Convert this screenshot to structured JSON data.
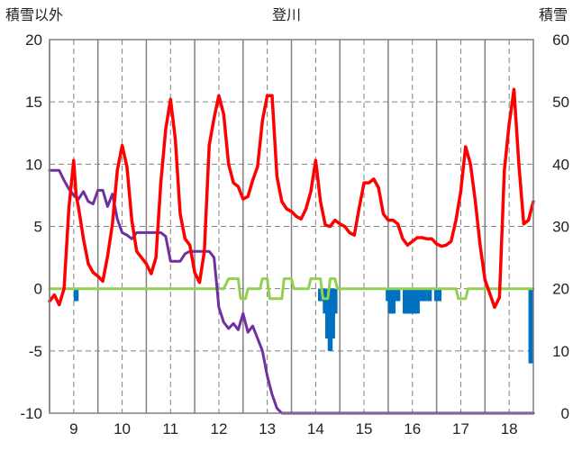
{
  "chart_data": {
    "type": "line",
    "title": "登川",
    "left_axis_label": "積雪以外",
    "right_axis_label": "積雪",
    "left_ylim": [
      -10,
      20
    ],
    "left_yticks": [
      "20",
      "15",
      "10",
      "5",
      "0",
      "-5",
      "-10"
    ],
    "right_ylim": [
      0,
      60
    ],
    "right_yticks": [
      "60",
      "50",
      "40",
      "30",
      "20",
      "10",
      "0"
    ],
    "x_range": [
      8.5,
      18.5
    ],
    "x_ticks": [
      "9",
      "10",
      "11",
      "12",
      "13",
      "14",
      "15",
      "16",
      "17",
      "18"
    ],
    "grid": true,
    "colors": {
      "temperature": "#ff0000",
      "snow_depth": "#7030a0",
      "precipitation_line": "#92d050",
      "bars": "#0070c0",
      "axis": "#808080",
      "grid": "#808080"
    },
    "series": [
      {
        "key": "temperature",
        "axis": "left",
        "x": [
          8.5,
          8.6,
          8.7,
          8.8,
          8.9,
          9.0,
          9.05,
          9.1,
          9.2,
          9.3,
          9.4,
          9.5,
          9.6,
          9.7,
          9.8,
          9.9,
          10.0,
          10.1,
          10.2,
          10.3,
          10.4,
          10.5,
          10.6,
          10.7,
          10.8,
          10.9,
          11.0,
          11.1,
          11.2,
          11.3,
          11.4,
          11.5,
          11.6,
          11.7,
          11.8,
          11.9,
          12.0,
          12.1,
          12.2,
          12.3,
          12.4,
          12.5,
          12.6,
          12.7,
          12.8,
          12.9,
          13.0,
          13.1,
          13.2,
          13.3,
          13.4,
          13.5,
          13.6,
          13.7,
          13.8,
          13.9,
          14.0,
          14.1,
          14.2,
          14.3,
          14.4,
          14.5,
          14.6,
          14.7,
          14.8,
          14.9,
          15.0,
          15.1,
          15.2,
          15.3,
          15.4,
          15.5,
          15.6,
          15.7,
          15.8,
          15.9,
          16.0,
          16.1,
          16.2,
          16.3,
          16.4,
          16.5,
          16.6,
          16.7,
          16.8,
          16.9,
          17.0,
          17.1,
          17.2,
          17.3,
          17.4,
          17.5,
          17.6,
          17.7,
          17.8,
          17.9,
          18.0,
          18.1,
          18.2,
          18.3,
          18.4,
          18.5
        ],
        "y": [
          -1,
          -0.5,
          -1.3,
          0,
          6.5,
          10.3,
          7.5,
          6.5,
          4,
          2,
          1.3,
          1,
          0.6,
          2.6,
          5.2,
          9.5,
          11.5,
          9.8,
          5.5,
          3,
          2.5,
          2,
          1.2,
          2.5,
          8.5,
          12.8,
          15.2,
          12,
          6,
          4,
          3.5,
          1.3,
          0.5,
          3,
          11.5,
          13.7,
          15.5,
          14,
          10,
          8.5,
          8.2,
          7.2,
          7.4,
          8.7,
          9.8,
          13.5,
          15.5,
          15.5,
          9,
          7,
          6.4,
          6.2,
          5.8,
          5.6,
          6.4,
          7.8,
          10.3,
          7,
          5.1,
          5.0,
          5.5,
          5.2,
          5.0,
          4.5,
          4.3,
          6.5,
          8.5,
          8.5,
          8.8,
          8.1,
          6,
          5.5,
          5.5,
          5.2,
          4,
          3.5,
          3.8,
          4.1,
          4.1,
          4.0,
          4.0,
          3.6,
          3.4,
          3.5,
          3.8,
          5.5,
          7.8,
          11.4,
          10,
          7,
          3.5,
          0.7,
          -0.4,
          -1.5,
          -0.7,
          9.5,
          13.2,
          16,
          10,
          5.2,
          5.5,
          7
        ]
      },
      {
        "key": "snow_depth",
        "axis": "left",
        "x": [
          8.5,
          8.7,
          8.8,
          8.9,
          9.0,
          9.1,
          9.2,
          9.3,
          9.4,
          9.5,
          9.6,
          9.7,
          9.8,
          9.9,
          10.0,
          10.1,
          10.2,
          10.3,
          10.5,
          10.7,
          10.8,
          10.9,
          11.0,
          11.1,
          11.2,
          11.3,
          11.4,
          11.5,
          11.6,
          11.7,
          11.8,
          11.9,
          11.95,
          12.0,
          12.1,
          12.2,
          12.3,
          12.4,
          12.5,
          12.6,
          12.7,
          12.8,
          12.9,
          13.0,
          13.1,
          13.2,
          13.3,
          13.4,
          13.5,
          14.0,
          15.0,
          16.0,
          17.0,
          18.0,
          18.5
        ],
        "y": [
          9.5,
          9.5,
          8.7,
          8,
          7.5,
          7.2,
          7.8,
          7,
          6.8,
          7.9,
          7.9,
          6.6,
          7.6,
          5.6,
          4.5,
          4.3,
          4.0,
          4.5,
          4.5,
          4.5,
          4.5,
          4.2,
          2.2,
          2.2,
          2.2,
          2.8,
          3.0,
          3.0,
          3.0,
          3.0,
          3.0,
          2.5,
          0.5,
          -1.5,
          -2.7,
          -3.2,
          -2.8,
          -3.3,
          -2.0,
          -3.5,
          -3.0,
          -4.0,
          -5.0,
          -7.0,
          -8.5,
          -9.6,
          -10,
          -10,
          -10,
          -10,
          -10,
          -10,
          -10,
          -10,
          -10
        ]
      },
      {
        "key": "precipitation_line",
        "axis": "left",
        "x": [
          8.5,
          12.1,
          12.2,
          12.4,
          12.45,
          12.55,
          12.6,
          12.85,
          12.9,
          13.0,
          13.05,
          13.3,
          13.35,
          13.5,
          13.55,
          13.85,
          13.9,
          14.1,
          14.15,
          14.25,
          14.3,
          14.4,
          14.45,
          15.0,
          16.5,
          16.9,
          16.95,
          17.1,
          17.15,
          18.5
        ],
        "y": [
          0,
          0,
          0.8,
          0.8,
          -0.8,
          -0.8,
          0,
          0,
          0.8,
          0.8,
          -0.8,
          -0.8,
          0.8,
          0.8,
          0,
          0,
          0.8,
          0.8,
          -0.8,
          -0.8,
          0.8,
          0.8,
          0,
          0,
          0,
          0,
          -0.8,
          -0.8,
          0,
          0
        ]
      }
    ],
    "bars": {
      "axis": "left",
      "x": [
        9.05,
        14.1,
        14.2,
        14.25,
        14.3,
        14.35,
        14.4,
        15.5,
        15.55,
        15.6,
        15.7,
        15.85,
        15.9,
        15.95,
        16.0,
        16.05,
        16.1,
        16.15,
        16.25,
        16.35,
        16.5,
        16.55,
        18.45
      ],
      "y": [
        -1,
        -1,
        -2,
        -4,
        -5,
        -4,
        -2,
        -1,
        -2,
        -2,
        -1,
        -2,
        -2,
        -2,
        -2,
        -2,
        -2,
        -1,
        -1,
        -1,
        -1,
        -1,
        -6
      ]
    }
  }
}
